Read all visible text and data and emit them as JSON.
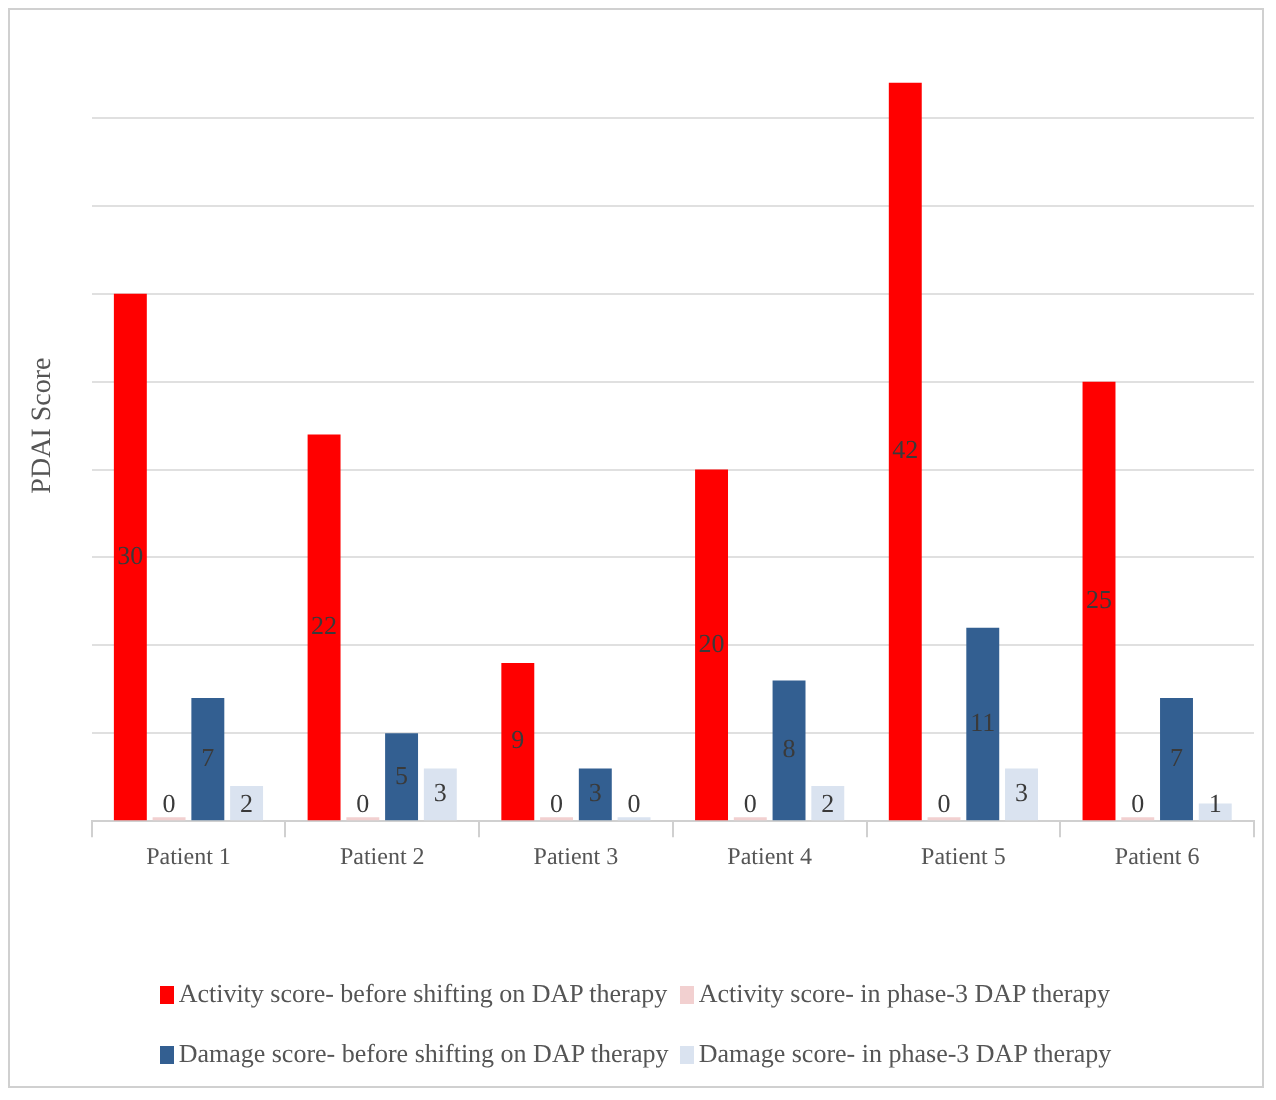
{
  "chart_data": {
    "type": "bar",
    "ylabel": "PDAI Score",
    "categories": [
      "Patient 1",
      "Patient 2",
      "Patient 3",
      "Patient 4",
      "Patient 5",
      "Patient 6"
    ],
    "series": [
      {
        "name": "Activity score- before shifting on DAP therapy",
        "color": "#ff0000",
        "values": [
          30,
          22,
          9,
          20,
          42,
          25
        ]
      },
      {
        "name": "Activity score- in phase-3 DAP therapy",
        "color": "#f2d0d0",
        "values": [
          0,
          0,
          0,
          0,
          0,
          0
        ]
      },
      {
        "name": "Damage score- before shifting on DAP therapy",
        "color": "#335f91",
        "values": [
          7,
          5,
          3,
          8,
          11,
          7
        ]
      },
      {
        "name": "Damage score- in phase-3 DAP therapy",
        "color": "#dae3f0",
        "values": [
          2,
          3,
          0,
          2,
          3,
          1
        ]
      }
    ],
    "yticks": [
      {
        "value": 0,
        "label": null
      },
      {
        "value": 5,
        "label": null
      },
      {
        "value": 10,
        "label": null
      },
      {
        "value": 15,
        "label": null
      },
      {
        "value": 20,
        "label": null
      },
      {
        "value": 25,
        "label": null
      },
      {
        "value": 30,
        "label": null
      },
      {
        "value": 35,
        "label": null
      },
      {
        "value": 40,
        "label": null
      }
    ],
    "tick_labels": "x",
    "grid": "y",
    "legend": "bottom",
    "data_labels": true
  }
}
